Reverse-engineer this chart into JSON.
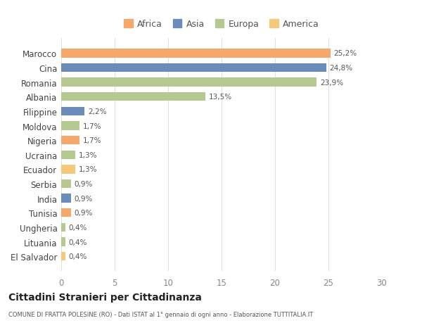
{
  "categories": [
    "El Salvador",
    "Lituania",
    "Ungheria",
    "Tunisia",
    "India",
    "Serbia",
    "Ecuador",
    "Ucraina",
    "Nigeria",
    "Moldova",
    "Filippine",
    "Albania",
    "Romania",
    "Cina",
    "Marocco"
  ],
  "values": [
    0.4,
    0.4,
    0.4,
    0.9,
    0.9,
    0.9,
    1.3,
    1.3,
    1.7,
    1.7,
    2.2,
    13.5,
    23.9,
    24.8,
    25.2
  ],
  "labels": [
    "0,4%",
    "0,4%",
    "0,4%",
    "0,9%",
    "0,9%",
    "0,9%",
    "1,3%",
    "1,3%",
    "1,7%",
    "1,7%",
    "2,2%",
    "13,5%",
    "23,9%",
    "24,8%",
    "25,2%"
  ],
  "colors": [
    "#f5c97a",
    "#b5c990",
    "#b5c990",
    "#f5a86a",
    "#6b8cba",
    "#b5c990",
    "#f5c97a",
    "#b5c990",
    "#f5a86a",
    "#b5c990",
    "#6b8cba",
    "#b5c990",
    "#b5c990",
    "#6b8cba",
    "#f5a86a"
  ],
  "legend_labels": [
    "Africa",
    "Asia",
    "Europa",
    "America"
  ],
  "legend_colors": [
    "#f5a86a",
    "#6b8cba",
    "#b5c990",
    "#f5c97a"
  ],
  "title": "Cittadini Stranieri per Cittadinanza",
  "subtitle": "COMUNE DI FRATTA POLESINE (RO) - Dati ISTAT al 1° gennaio di ogni anno - Elaborazione TUTTITALIA.IT",
  "xlim": [
    0,
    30
  ],
  "xticks": [
    0,
    5,
    10,
    15,
    20,
    25,
    30
  ],
  "background_color": "#ffffff",
  "grid_color": "#e0e0e0",
  "bar_height": 0.6
}
